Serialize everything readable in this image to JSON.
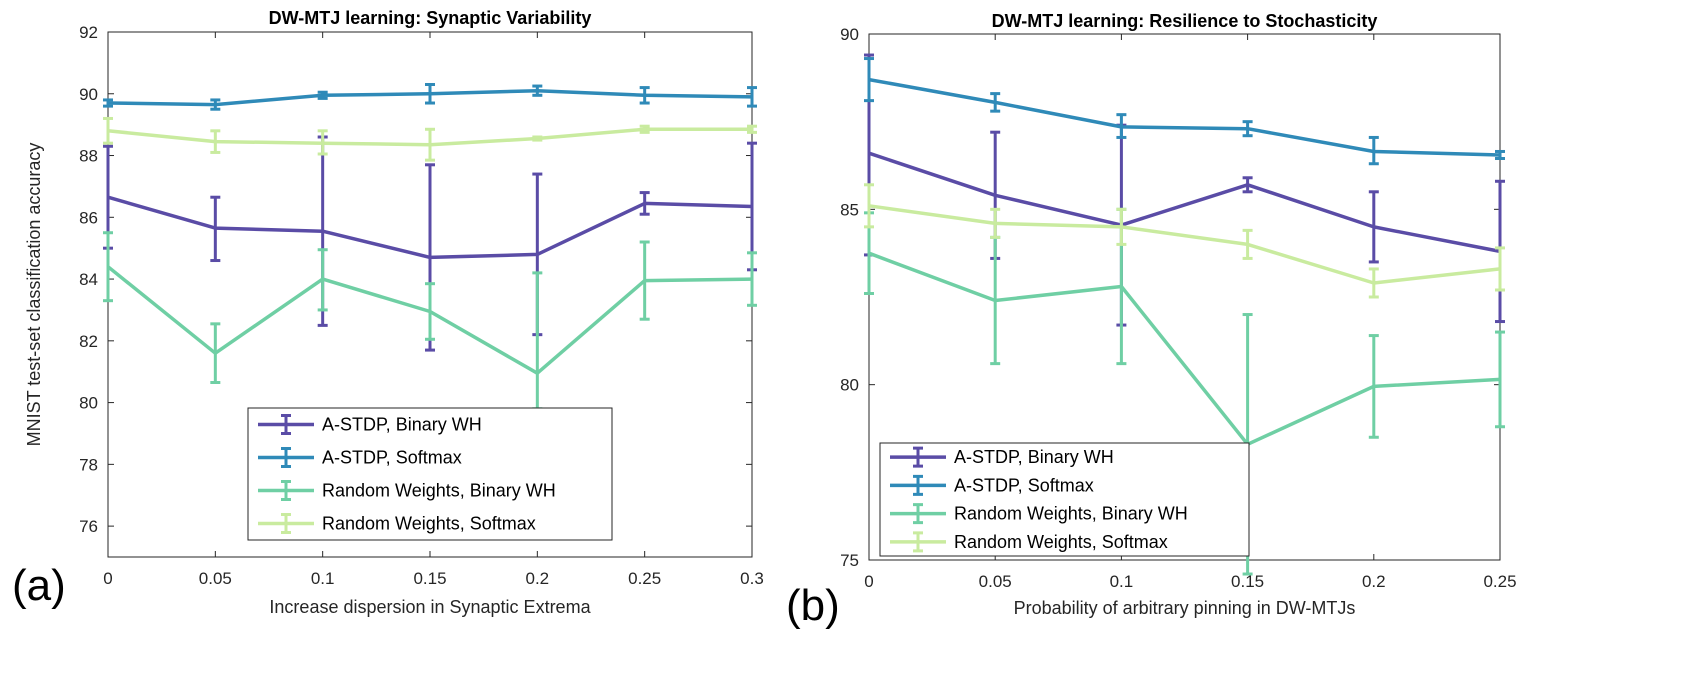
{
  "chart_data": [
    {
      "type": "line",
      "panel_label": "(a)",
      "title": "DW-MTJ learning: Synaptic Variability",
      "xlabel": "Increase dispersion in Synaptic Extrema",
      "ylabel": "MNIST test-set classification accuracy",
      "xlim": [
        0,
        0.3
      ],
      "ylim": [
        75,
        92
      ],
      "xticks": [
        0,
        0.05,
        0.1,
        0.15,
        0.2,
        0.25,
        0.3
      ],
      "xtick_labels": [
        "0",
        "0.05",
        "0.1",
        "0.15",
        "0.2",
        "0.25",
        "0.3"
      ],
      "yticks": [
        76,
        78,
        80,
        82,
        84,
        86,
        88,
        90,
        92
      ],
      "ytick_labels": [
        "76",
        "78",
        "80",
        "82",
        "84",
        "86",
        "88",
        "90",
        "92"
      ],
      "grid": false,
      "legend_position": "bottom-center",
      "x": [
        0,
        0.05,
        0.1,
        0.15,
        0.2,
        0.25,
        0.3
      ],
      "series": [
        {
          "name": "A-STDP, Binary WH",
          "color": "#5a4ca6",
          "values": [
            86.65,
            85.65,
            85.55,
            84.7,
            84.8,
            86.45,
            86.35
          ],
          "lower": [
            85.0,
            84.6,
            82.5,
            81.7,
            82.2,
            86.1,
            84.3
          ],
          "upper": [
            88.3,
            86.65,
            88.6,
            87.7,
            87.4,
            86.8,
            88.4
          ]
        },
        {
          "name": "A-STDP, Softmax",
          "color": "#2f8ab8",
          "values": [
            89.7,
            89.65,
            89.95,
            90.0,
            90.1,
            89.95,
            89.9
          ],
          "lower": [
            89.6,
            89.5,
            89.85,
            89.7,
            89.95,
            89.7,
            89.6
          ],
          "upper": [
            89.8,
            89.8,
            90.05,
            90.3,
            90.25,
            90.2,
            90.2
          ]
        },
        {
          "name": "Random Weights, Binary WH",
          "color": "#6fcfa4",
          "values": [
            84.4,
            81.6,
            84.0,
            82.95,
            80.95,
            83.95,
            84.0
          ],
          "lower": [
            83.3,
            80.65,
            83.0,
            82.05,
            79.8,
            82.7,
            83.15
          ],
          "upper": [
            85.5,
            82.55,
            84.95,
            83.85,
            84.2,
            85.2,
            84.85
          ]
        },
        {
          "name": "Random Weights, Softmax",
          "color": "#c9eb9f",
          "values": [
            88.8,
            88.45,
            88.4,
            88.35,
            88.55,
            88.85,
            88.85
          ],
          "lower": [
            88.4,
            88.1,
            88.05,
            87.85,
            88.5,
            88.75,
            88.75
          ],
          "upper": [
            89.2,
            88.8,
            88.8,
            88.85,
            88.6,
            88.95,
            88.95
          ]
        }
      ]
    },
    {
      "type": "line",
      "panel_label": "(b)",
      "title": "DW-MTJ learning: Resilience to Stochasticity",
      "xlabel": "Probability of arbitrary pinning in DW-MTJs",
      "ylabel": "",
      "xlim": [
        0,
        0.25
      ],
      "ylim": [
        75,
        90
      ],
      "xticks": [
        0,
        0.05,
        0.1,
        0.15,
        0.2,
        0.25
      ],
      "xtick_labels": [
        "0",
        "0.05",
        "0.1",
        "0.15",
        "0.2",
        "0.25"
      ],
      "yticks": [
        75,
        80,
        85,
        90
      ],
      "ytick_labels": [
        "75",
        "80",
        "85",
        "90"
      ],
      "grid": false,
      "legend_position": "bottom-left",
      "x": [
        0,
        0.05,
        0.1,
        0.15,
        0.2,
        0.25
      ],
      "series": [
        {
          "name": "A-STDP, Binary WH",
          "color": "#5a4ca6",
          "values": [
            86.6,
            85.4,
            84.55,
            85.7,
            84.5,
            83.8
          ],
          "lower": [
            83.7,
            83.6,
            81.7,
            85.5,
            83.5,
            81.8
          ],
          "upper": [
            89.4,
            87.2,
            87.4,
            85.9,
            85.5,
            85.8
          ]
        },
        {
          "name": "A-STDP, Softmax",
          "color": "#2f8ab8",
          "values": [
            88.7,
            88.05,
            87.35,
            87.3,
            86.65,
            86.55
          ],
          "lower": [
            88.1,
            87.8,
            87.05,
            87.1,
            86.3,
            86.45
          ],
          "upper": [
            89.3,
            88.3,
            87.7,
            87.5,
            87.05,
            86.65
          ]
        },
        {
          "name": "Random Weights, Binary WH",
          "color": "#6fcfa4",
          "values": [
            83.75,
            82.4,
            82.8,
            78.3,
            79.95,
            80.15
          ],
          "lower": [
            82.6,
            80.6,
            80.6,
            74.6,
            78.5,
            78.8
          ],
          "upper": [
            84.9,
            84.2,
            85.0,
            82.0,
            81.4,
            81.5
          ]
        },
        {
          "name": "Random Weights, Softmax",
          "color": "#c9eb9f",
          "values": [
            85.1,
            84.6,
            84.5,
            84.0,
            82.9,
            83.3
          ],
          "lower": [
            84.5,
            84.2,
            84.0,
            83.6,
            82.5,
            82.7
          ],
          "upper": [
            85.7,
            85.0,
            85.0,
            84.4,
            83.3,
            83.9
          ]
        }
      ]
    }
  ]
}
